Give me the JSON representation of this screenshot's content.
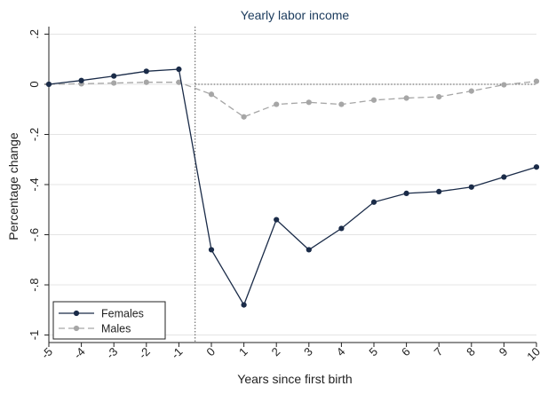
{
  "chart_data": {
    "type": "line",
    "title": "Yearly labor income",
    "xlabel": "Years since first birth",
    "ylabel": "Percentage change",
    "x": [
      -5,
      -4,
      -3,
      -2,
      -1,
      0,
      1,
      2,
      3,
      4,
      5,
      6,
      7,
      8,
      9,
      10
    ],
    "xticks": [
      "-5",
      "-4",
      "-3",
      "-2",
      "-1",
      "0",
      "1",
      "2",
      "3",
      "4",
      "5",
      "6",
      "7",
      "8",
      "9",
      "10"
    ],
    "yticks": [
      ".2",
      "0",
      "-.2",
      "-.4",
      "-.6",
      "-.8",
      "-1"
    ],
    "ytick_values": [
      0.2,
      0,
      -0.2,
      -0.4,
      -0.6,
      -0.8,
      -1
    ],
    "xlim": [
      -5,
      10
    ],
    "ylim": [
      -1.03,
      0.23
    ],
    "grid": "horizontal",
    "reference_lines": {
      "vertical_x": -0.5,
      "horizontal_y": 0
    },
    "legend_position": "bottom-left",
    "series": [
      {
        "name": "Females",
        "color": "#1a2b48",
        "style": "solid",
        "values": [
          0,
          0.015,
          0.033,
          0.052,
          0.06,
          -0.66,
          -0.88,
          -0.54,
          -0.66,
          -0.575,
          -0.47,
          -0.435,
          -0.428,
          -0.41,
          -0.37,
          -0.33
        ]
      },
      {
        "name": "Males",
        "color": "#a6a6a6",
        "style": "dashed",
        "values": [
          0,
          0.002,
          0.005,
          0.008,
          0.008,
          -0.04,
          -0.13,
          -0.08,
          -0.072,
          -0.08,
          -0.063,
          -0.055,
          -0.05,
          -0.027,
          -0.002,
          0.012
        ]
      }
    ]
  }
}
